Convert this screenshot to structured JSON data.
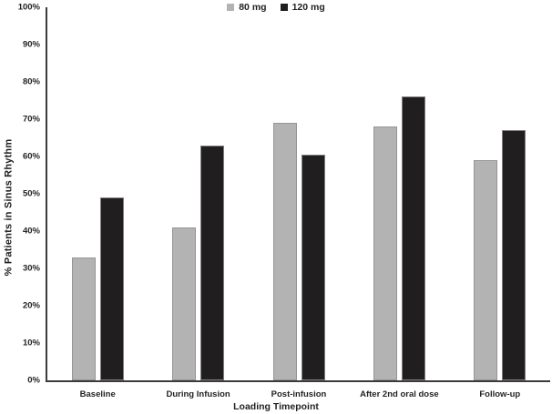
{
  "chart_data": {
    "type": "bar",
    "title": "",
    "categories": [
      "Baseline",
      "During Infusion",
      "Post-infusion",
      "After 2nd oral dose",
      "Follow-up"
    ],
    "series": [
      {
        "name": "80 mg",
        "color": "#b3b3b3",
        "values": [
          33,
          41,
          69,
          68,
          59
        ]
      },
      {
        "name": "120 mg",
        "color": "#211e1f",
        "values": [
          49,
          63,
          60.5,
          76,
          67
        ]
      }
    ],
    "xlabel": "Loading Timepoint",
    "ylabel": "% Patients in Sinus Rhythm",
    "ylim": [
      0,
      100
    ],
    "ytick_step": 10,
    "y_tick_labels": [
      "0%",
      "10%",
      "20%",
      "30%",
      "40%",
      "50%",
      "60%",
      "70%",
      "80%",
      "90%",
      "100%"
    ],
    "grid": false,
    "legend_position": "top-center",
    "colors": {
      "axis": "#3b3b3b",
      "text": "#231f20",
      "bar_outline": "#8f8f8f",
      "background": "#ffffff"
    }
  }
}
